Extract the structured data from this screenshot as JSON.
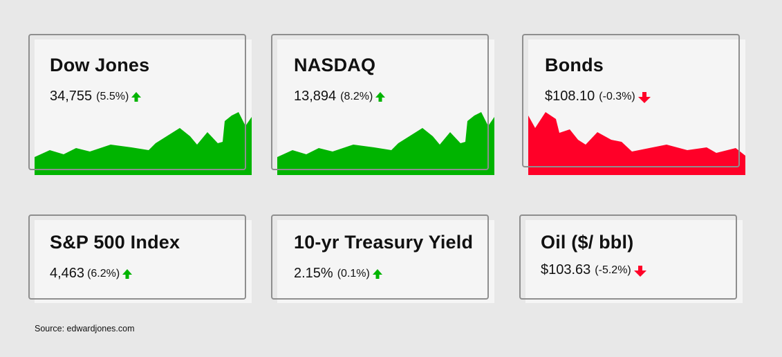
{
  "colors": {
    "up": "#00b400",
    "down": "#ff0028",
    "text": "#111111",
    "border": "#8e8e8e",
    "card": "#f5f5f5",
    "page": "#e8e8e8"
  },
  "cards": [
    {
      "title": "Dow Jones",
      "value": "34,755",
      "change": "(5.5%)",
      "direction": "up",
      "icon": "arrow-up-icon"
    },
    {
      "title": "NASDAQ",
      "value": "13,894",
      "change": "(8.2%)",
      "direction": "up",
      "icon": "arrow-up-icon"
    },
    {
      "title": "Bonds",
      "value": "$108.10",
      "change": "(-0.3%)",
      "direction": "down",
      "icon": "arrow-down-icon"
    },
    {
      "title": "S&P 500 Index",
      "value": "4,463",
      "change": "(6.2%)",
      "direction": "up",
      "icon": "arrow-up-icon"
    },
    {
      "title": "10-yr Treasury Yield",
      "value": "2.15%",
      "change": "(0.1%)",
      "direction": "up",
      "icon": "arrow-up-icon"
    },
    {
      "title": "Oil ($/ bbl)",
      "value": "$103.63",
      "change": "(-5.2%)",
      "direction": "down",
      "icon": "arrow-down-icon"
    }
  ],
  "source": "Source: edwardjones.com"
}
